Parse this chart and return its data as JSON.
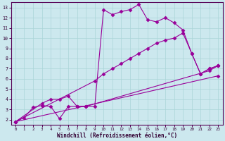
{
  "xlabel": "Windchill (Refroidissement éolien,°C)",
  "bg_color": "#cce8ee",
  "line_color": "#990099",
  "grid_color": "#aad4d8",
  "xlim": [
    -0.5,
    23.5
  ],
  "ylim": [
    1.5,
    13.5
  ],
  "xticks": [
    0,
    1,
    2,
    3,
    4,
    5,
    6,
    7,
    8,
    9,
    10,
    11,
    12,
    13,
    14,
    15,
    16,
    17,
    18,
    19,
    20,
    21,
    22,
    23
  ],
  "yticks": [
    2,
    3,
    4,
    5,
    6,
    7,
    8,
    9,
    10,
    11,
    12,
    13
  ],
  "line1_x": [
    0,
    1,
    2,
    3,
    4,
    5,
    6,
    7,
    8,
    9,
    10,
    11,
    12,
    13,
    14,
    15,
    16,
    17,
    18,
    19,
    20,
    21,
    22,
    23
  ],
  "line1_y": [
    1.8,
    2.2,
    3.2,
    3.4,
    3.3,
    2.1,
    3.3,
    3.3,
    3.3,
    3.3,
    12.8,
    12.3,
    12.6,
    12.8,
    13.3,
    11.8,
    11.6,
    12.0,
    11.5,
    10.8,
    8.5,
    6.5,
    7.0,
    7.3
  ],
  "line2_x": [
    0,
    3,
    4,
    5,
    6,
    7,
    8,
    22,
    23
  ],
  "line2_y": [
    1.8,
    3.6,
    4.0,
    4.0,
    4.3,
    3.3,
    3.3,
    6.8,
    7.3
  ],
  "line3_x": [
    0,
    9,
    10,
    11,
    12,
    13,
    14,
    15,
    16,
    17,
    18,
    19,
    20,
    21,
    22,
    23
  ],
  "line3_y": [
    1.8,
    5.8,
    6.5,
    7.0,
    7.5,
    8.0,
    8.5,
    9.0,
    9.5,
    9.8,
    10.0,
    10.5,
    8.5,
    6.5,
    7.0,
    7.3
  ],
  "line4_x": [
    0,
    23
  ],
  "line4_y": [
    1.8,
    6.3
  ],
  "marker": "D",
  "markersize": 2.5,
  "linewidth": 0.8
}
